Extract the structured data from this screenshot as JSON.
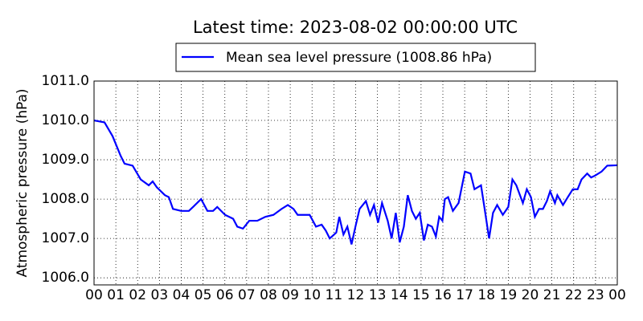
{
  "chart_data": {
    "type": "line",
    "title": "Latest time: 2023-08-02 00:00:00 UTC",
    "y_label": "Atmospheric pressure (hPa)",
    "series": [
      {
        "name": "Mean sea level pressure (1008.86 hPa)",
        "color": "#0000ff",
        "x": [
          0,
          0.48,
          0.85,
          1.22,
          1.4,
          1.77,
          2.14,
          2.51,
          2.69,
          2.88,
          3.25,
          3.43,
          3.62,
          3.99,
          4.35,
          4.54,
          4.91,
          5.2,
          5.46,
          5.65,
          6.01,
          6.38,
          6.57,
          6.83,
          7.12,
          7.49,
          7.86,
          8.23,
          8.6,
          8.89,
          9.15,
          9.34,
          9.89,
          10.18,
          10.44,
          10.63,
          10.81,
          11.11,
          11.25,
          11.44,
          11.62,
          11.81,
          11.99,
          12.18,
          12.47,
          12.66,
          12.84,
          13.03,
          13.21,
          13.47,
          13.65,
          13.84,
          14.02,
          14.21,
          14.39,
          14.58,
          14.76,
          14.94,
          15.13,
          15.31,
          15.5,
          15.68,
          15.83,
          15.98,
          16.09,
          16.24,
          16.46,
          16.72,
          17.01,
          17.27,
          17.45,
          17.75,
          17.93,
          18.12,
          18.3,
          18.49,
          18.75,
          19.0,
          19.19,
          19.37,
          19.67,
          19.85,
          20.04,
          20.22,
          20.41,
          20.59,
          20.77,
          20.92,
          21.14,
          21.25,
          21.51,
          21.73,
          21.96,
          22.18,
          22.36,
          22.62,
          22.8,
          22.99,
          23.28,
          23.54,
          24
        ],
        "values": [
          1010.0,
          1009.95,
          1009.6,
          1009.1,
          1008.9,
          1008.85,
          1008.5,
          1008.35,
          1008.45,
          1008.3,
          1008.1,
          1008.05,
          1007.75,
          1007.7,
          1007.7,
          1007.8,
          1008.0,
          1007.7,
          1007.7,
          1007.8,
          1007.6,
          1007.5,
          1007.3,
          1007.25,
          1007.45,
          1007.45,
          1007.55,
          1007.6,
          1007.75,
          1007.85,
          1007.75,
          1007.6,
          1007.6,
          1007.3,
          1007.35,
          1007.2,
          1007.0,
          1007.15,
          1007.55,
          1007.1,
          1007.3,
          1006.85,
          1007.3,
          1007.75,
          1007.95,
          1007.6,
          1007.85,
          1007.4,
          1007.9,
          1007.45,
          1007.0,
          1007.65,
          1006.9,
          1007.3,
          1008.1,
          1007.7,
          1007.5,
          1007.65,
          1006.95,
          1007.35,
          1007.3,
          1007.05,
          1007.55,
          1007.45,
          1008.0,
          1008.05,
          1007.7,
          1007.9,
          1008.7,
          1008.65,
          1008.25,
          1008.35,
          1007.7,
          1007.0,
          1007.65,
          1007.85,
          1007.6,
          1007.8,
          1008.5,
          1008.35,
          1007.9,
          1008.25,
          1008.05,
          1007.55,
          1007.75,
          1007.75,
          1007.95,
          1008.2,
          1007.9,
          1008.1,
          1007.85,
          1008.05,
          1008.25,
          1008.25,
          1008.5,
          1008.65,
          1008.55,
          1008.6,
          1008.7,
          1008.85,
          1008.86
        ]
      }
    ],
    "xlim": [
      0,
      24
    ],
    "xticks": [
      {
        "value": 0,
        "label": "00"
      },
      {
        "value": 1,
        "label": "01"
      },
      {
        "value": 2,
        "label": "02"
      },
      {
        "value": 3,
        "label": "03"
      },
      {
        "value": 4,
        "label": "04"
      },
      {
        "value": 5,
        "label": "05"
      },
      {
        "value": 6,
        "label": "06"
      },
      {
        "value": 7,
        "label": "07"
      },
      {
        "value": 8,
        "label": "08"
      },
      {
        "value": 9,
        "label": "09"
      },
      {
        "value": 10,
        "label": "10"
      },
      {
        "value": 11,
        "label": "11"
      },
      {
        "value": 12,
        "label": "12"
      },
      {
        "value": 13,
        "label": "13"
      },
      {
        "value": 14,
        "label": "14"
      },
      {
        "value": 15,
        "label": "15"
      },
      {
        "value": 16,
        "label": "16"
      },
      {
        "value": 17,
        "label": "17"
      },
      {
        "value": 18,
        "label": "18"
      },
      {
        "value": 19,
        "label": "19"
      },
      {
        "value": 20,
        "label": "20"
      },
      {
        "value": 21,
        "label": "21"
      },
      {
        "value": 22,
        "label": "22"
      },
      {
        "value": 23,
        "label": "23"
      },
      {
        "value": 24,
        "label": "00"
      }
    ],
    "ylim": [
      1005.82,
      1011.0
    ],
    "yticks": [
      {
        "value": 1006,
        "label": "1006.0"
      },
      {
        "value": 1007,
        "label": "1007.0"
      },
      {
        "value": 1008,
        "label": "1008.0"
      },
      {
        "value": 1009,
        "label": "1009.0"
      },
      {
        "value": 1010,
        "label": "1010.0"
      },
      {
        "value": 1011,
        "label": "1011.0"
      }
    ],
    "grid": true,
    "legend": "top"
  }
}
